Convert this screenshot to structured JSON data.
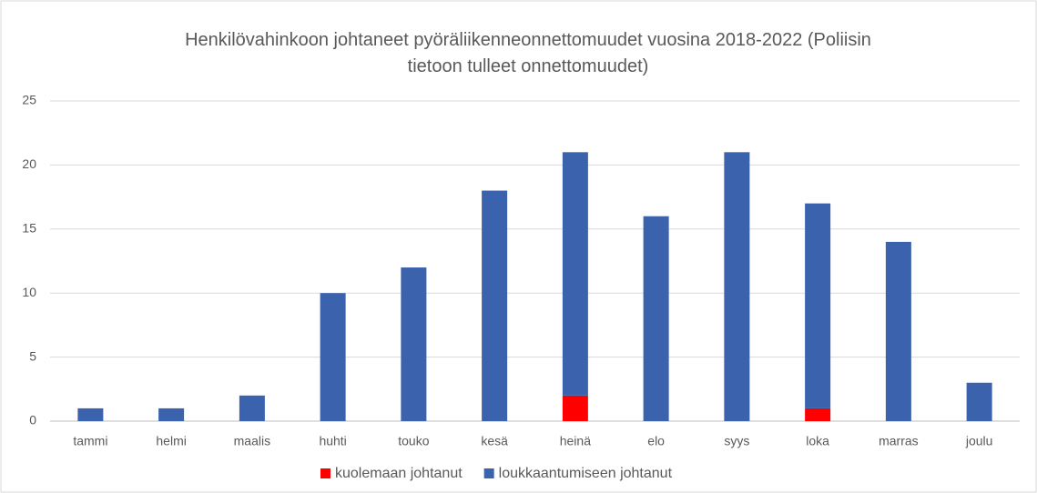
{
  "chart_data": {
    "type": "stacked_bar",
    "title": "Henkilövahinkoon johtaneet pyöräliikenneonnettomuudet vuosina 2018-2022 (Poliisin tietoon tulleet onnettomuudet)",
    "categories": [
      "tammi",
      "helmi",
      "maalis",
      "huhti",
      "touko",
      "kesä",
      "heinä",
      "elo",
      "syys",
      "loka",
      "marras",
      "joulu"
    ],
    "series": [
      {
        "name": "kuolemaan johtanut",
        "color": "#ff0000",
        "values": [
          0,
          0,
          0,
          0,
          0,
          0,
          2,
          0,
          0,
          1,
          0,
          0
        ]
      },
      {
        "name": "loukkaantumiseen johtanut",
        "color": "#3a62ad",
        "values": [
          1,
          1,
          2,
          10,
          12,
          18,
          19,
          16,
          21,
          16,
          14,
          3
        ]
      }
    ],
    "ylim": [
      0,
      25
    ],
    "yticks": [
      0,
      5,
      10,
      15,
      20,
      25
    ],
    "grid": true,
    "legend": "bottom"
  }
}
